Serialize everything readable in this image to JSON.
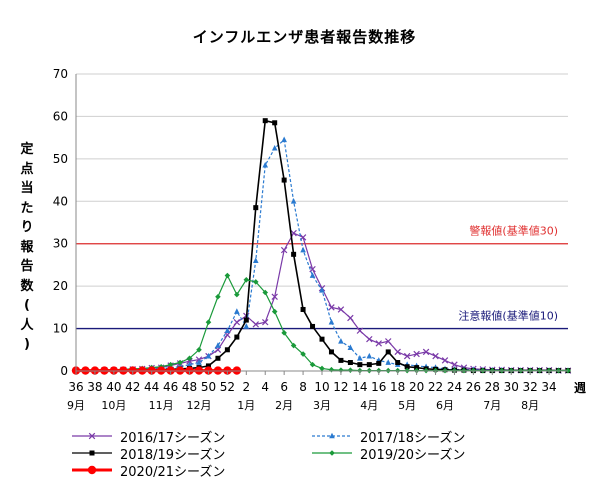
{
  "chart_data": {
    "type": "line",
    "title": "インフルエンザ患者報告数推移",
    "ylabel": "定点当たり報告数(人)",
    "xlabel": "週",
    "ylim": [
      0,
      70
    ],
    "yticks": [
      0,
      10,
      20,
      30,
      40,
      50,
      60,
      70
    ],
    "x_week_ticks": [
      "36",
      "38",
      "40",
      "42",
      "44",
      "46",
      "48",
      "50",
      "52",
      "2",
      "4",
      "6",
      "8",
      "10",
      "12",
      "14",
      "16",
      "18",
      "20",
      "22",
      "24",
      "26",
      "28",
      "30",
      "32",
      "34"
    ],
    "month_labels": [
      {
        "label": "9月",
        "week_index": 0
      },
      {
        "label": "10月",
        "week_index": 4
      },
      {
        "label": "11月",
        "week_index": 9
      },
      {
        "label": "12月",
        "week_index": 13
      },
      {
        "label": "1月",
        "week_index": 18
      },
      {
        "label": "2月",
        "week_index": 22
      },
      {
        "label": "3月",
        "week_index": 26
      },
      {
        "label": "4月",
        "week_index": 31
      },
      {
        "label": "5月",
        "week_index": 35
      },
      {
        "label": "6月",
        "week_index": 39
      },
      {
        "label": "7月",
        "week_index": 44
      },
      {
        "label": "8月",
        "week_index": 48
      }
    ],
    "reference_lines": [
      {
        "value": 30,
        "label": "警報値(基準値30)",
        "color": "#e03030"
      },
      {
        "value": 10,
        "label": "注意報値(基準値10)",
        "color": "#1a1a7a"
      }
    ],
    "series": [
      {
        "name": "2016/17シーズン",
        "color": "#7a3aa8",
        "marker": "x",
        "dash": "solid",
        "values": [
          0.1,
          0.1,
          0.1,
          0.2,
          0.2,
          0.3,
          0.4,
          0.5,
          0.7,
          0.8,
          1.3,
          1.8,
          2.3,
          2.7,
          3.5,
          5.0,
          8.5,
          11.5,
          13.0,
          11.0,
          11.5,
          17.5,
          28.5,
          32.5,
          31.5,
          24.0,
          19.5,
          15.0,
          14.5,
          12.5,
          9.5,
          7.5,
          6.5,
          7.0,
          4.5,
          3.5,
          4.0,
          4.5,
          3.5,
          2.5,
          1.5,
          0.8,
          0.5,
          0.4,
          0.3,
          0.3,
          0.2,
          0.2,
          0.2,
          0.2,
          0.2,
          0.1,
          0.1
        ]
      },
      {
        "name": "2017/18シーズン",
        "color": "#2a7ad0",
        "marker": "triangle",
        "dash": "dash",
        "values": [
          0.1,
          0.1,
          0.1,
          0.1,
          0.1,
          0.1,
          0.2,
          0.3,
          0.4,
          0.5,
          0.8,
          1.0,
          1.5,
          2.0,
          3.5,
          6.0,
          9.5,
          14.0,
          10.5,
          26.0,
          48.5,
          52.5,
          54.5,
          40.0,
          28.5,
          22.5,
          19.0,
          11.5,
          7.0,
          5.5,
          3.0,
          3.5,
          2.5,
          2.0,
          1.5,
          1.5,
          1.2,
          1.0,
          0.8,
          0.5,
          0.4,
          0.3,
          0.3,
          0.2,
          0.2,
          0.2,
          0.1,
          0.1,
          0.1,
          0.1,
          0.1,
          0.1,
          0.1
        ]
      },
      {
        "name": "2018/19シーズン",
        "color": "#000000",
        "marker": "square",
        "dash": "solid",
        "values": [
          0.1,
          0.1,
          0.1,
          0.1,
          0.1,
          0.1,
          0.1,
          0.2,
          0.3,
          0.3,
          0.4,
          0.5,
          0.6,
          0.8,
          1.2,
          3.0,
          5.0,
          8.0,
          12.0,
          38.5,
          59.0,
          58.5,
          45.0,
          27.5,
          14.5,
          10.5,
          7.5,
          4.5,
          2.5,
          2.0,
          1.5,
          1.5,
          1.8,
          4.5,
          2.0,
          1.0,
          0.8,
          0.5,
          0.4,
          0.3,
          0.2,
          0.2,
          0.1,
          0.1,
          0.1,
          0.1,
          0.1,
          0.1,
          0.1,
          0.1,
          0.1,
          0.1,
          0.1
        ]
      },
      {
        "name": "2019/20シーズン",
        "color": "#1a9a3a",
        "marker": "diamond",
        "dash": "solid",
        "values": [
          0.2,
          0.2,
          0.2,
          0.3,
          0.3,
          0.4,
          0.5,
          0.6,
          0.8,
          1.0,
          1.5,
          2.0,
          3.0,
          5.0,
          11.5,
          17.5,
          22.5,
          18.0,
          21.5,
          21.0,
          18.5,
          14.0,
          9.0,
          6.0,
          4.0,
          1.5,
          0.6,
          0.3,
          0.2,
          0.2,
          0.1,
          0.1,
          0.1,
          0.1,
          0.1,
          0.1,
          0.1,
          0.1,
          0.1,
          0.1,
          0.1,
          0.1,
          0.1,
          0.1,
          0.1,
          0.1,
          0.1,
          0.1,
          0.1,
          0.1,
          0.1,
          0.1,
          0.1
        ]
      },
      {
        "name": "2020/21シーズン",
        "color": "#ff0000",
        "marker": "circle",
        "dash": "solid",
        "thick": true,
        "values": [
          0.1,
          0.1,
          0.1,
          0.1,
          0.1,
          0.1,
          0.1,
          0.1,
          0.1,
          0.1,
          0.1,
          0.1,
          0.1,
          0.1,
          0.1,
          0.1,
          0.1,
          0.1,
          0.1,
          0.1,
          0.1,
          0.1,
          0.1,
          0.1,
          0.1,
          0.1,
          0.1,
          0.1,
          0.1,
          0.1,
          0.1,
          0.1,
          0.1,
          0.1,
          0.1,
          0.1,
          0.1,
          0.1,
          0.1,
          0.1,
          0.1,
          0.1,
          0.1,
          0.1,
          0.1,
          0.1,
          0.1,
          0.1,
          0.1,
          0.1,
          0.1,
          0.1,
          0.1
        ],
        "visible_weeks": 18
      }
    ],
    "legend_placement": "bottom"
  }
}
